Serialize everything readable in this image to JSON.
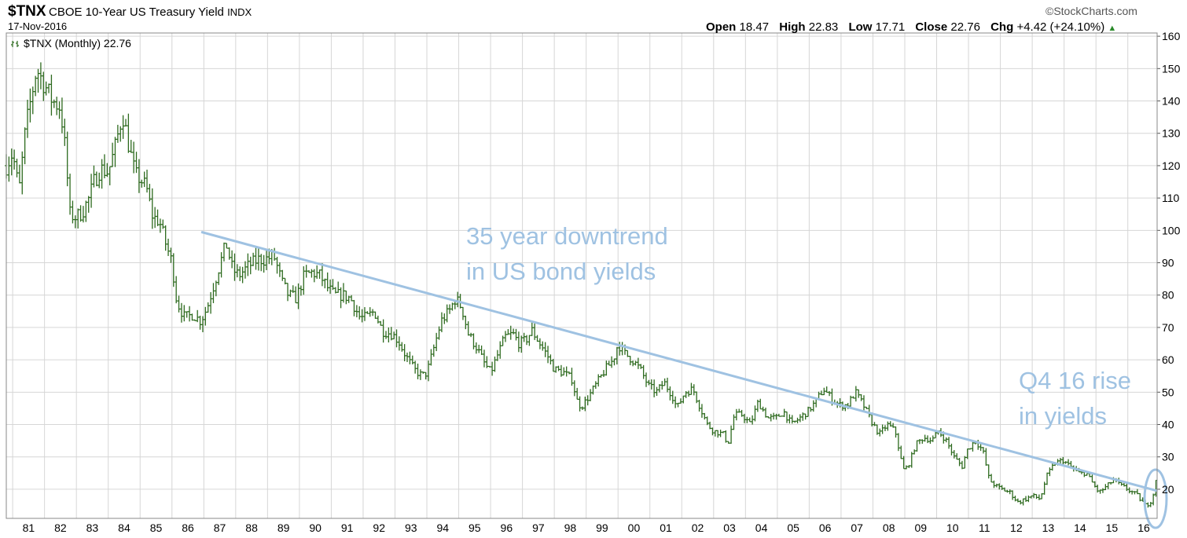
{
  "header": {
    "symbol": "$TNX",
    "title": "CBOE 10-Year US Treasury Yield",
    "kind": "INDX",
    "date": "17-Nov-2016",
    "brand": "©StockCharts.com",
    "ohlc": {
      "open_label": "Open",
      "open": "18.47",
      "high_label": "High",
      "high": "22.83",
      "low_label": "Low",
      "low": "17.71",
      "close_label": "Close",
      "close": "22.76",
      "chg_label": "Chg",
      "chg": "+4.42 (+24.10%)",
      "direction": "▲"
    },
    "legend": "$TNX (Monthly) 22.76"
  },
  "annotations": {
    "note1_line1": "35 year downtrend",
    "note1_line2": "in US bond yields",
    "note2_line1": "Q4 16 rise",
    "note2_line2": "in yields"
  },
  "colors": {
    "bars": "#2d6a1e",
    "annotation": "#9fc2e2",
    "grid": "#d6d6d6",
    "direction_up": "#2a8a2a"
  },
  "chart_data": {
    "type": "ohlc",
    "frequency": "monthly",
    "x_range": [
      1980.8,
      2016.92
    ],
    "ylim": [
      11,
      161
    ],
    "yticks": [
      20,
      30,
      40,
      50,
      60,
      70,
      80,
      90,
      100,
      110,
      120,
      130,
      140,
      150,
      160
    ],
    "xtick_labels": [
      "81",
      "82",
      "83",
      "84",
      "85",
      "86",
      "87",
      "88",
      "89",
      "90",
      "91",
      "92",
      "93",
      "94",
      "95",
      "96",
      "97",
      "98",
      "99",
      "00",
      "01",
      "02",
      "03",
      "04",
      "05",
      "06",
      "07",
      "08",
      "09",
      "10",
      "11",
      "12",
      "13",
      "14",
      "15",
      "16"
    ],
    "grid": true,
    "close_anchors": [
      [
        1980.8,
        120
      ],
      [
        1981.0,
        124
      ],
      [
        1981.2,
        112
      ],
      [
        1981.4,
        131
      ],
      [
        1981.6,
        142
      ],
      [
        1981.75,
        150
      ],
      [
        1982.0,
        145
      ],
      [
        1982.25,
        140
      ],
      [
        1982.5,
        138
      ],
      [
        1982.65,
        125
      ],
      [
        1982.8,
        105
      ],
      [
        1983.0,
        104
      ],
      [
        1983.2,
        106
      ],
      [
        1983.4,
        110
      ],
      [
        1983.55,
        115
      ],
      [
        1983.75,
        119
      ],
      [
        1984.0,
        118
      ],
      [
        1984.2,
        125
      ],
      [
        1984.45,
        136
      ],
      [
        1984.65,
        126
      ],
      [
        1984.85,
        117
      ],
      [
        1985.0,
        116
      ],
      [
        1985.2,
        113
      ],
      [
        1985.4,
        104
      ],
      [
        1985.6,
        103
      ],
      [
        1985.8,
        96
      ],
      [
        1986.0,
        90
      ],
      [
        1986.15,
        78
      ],
      [
        1986.4,
        73
      ],
      [
        1986.65,
        74
      ],
      [
        1986.9,
        72
      ],
      [
        1987.1,
        76
      ],
      [
        1987.4,
        86
      ],
      [
        1987.7,
        96
      ],
      [
        1987.9,
        88
      ],
      [
        1988.1,
        86
      ],
      [
        1988.4,
        89
      ],
      [
        1988.7,
        91
      ],
      [
        1988.9,
        91
      ],
      [
        1989.2,
        92
      ],
      [
        1989.45,
        84
      ],
      [
        1989.65,
        80
      ],
      [
        1989.9,
        79
      ],
      [
        1990.15,
        86
      ],
      [
        1990.4,
        87
      ],
      [
        1990.65,
        86
      ],
      [
        1990.9,
        82
      ],
      [
        1991.1,
        80
      ],
      [
        1991.35,
        80
      ],
      [
        1991.6,
        79
      ],
      [
        1991.9,
        73
      ],
      [
        1992.1,
        73
      ],
      [
        1992.35,
        75
      ],
      [
        1992.6,
        69
      ],
      [
        1992.9,
        68
      ],
      [
        1993.1,
        66
      ],
      [
        1993.35,
        61
      ],
      [
        1993.6,
        57
      ],
      [
        1993.85,
        55
      ],
      [
        1994.0,
        56
      ],
      [
        1994.2,
        63
      ],
      [
        1994.45,
        72
      ],
      [
        1994.7,
        75
      ],
      [
        1994.9,
        79
      ],
      [
        1995.1,
        76
      ],
      [
        1995.3,
        68
      ],
      [
        1995.55,
        64
      ],
      [
        1995.8,
        59
      ],
      [
        1996.0,
        56
      ],
      [
        1996.2,
        61
      ],
      [
        1996.45,
        67
      ],
      [
        1996.7,
        68
      ],
      [
        1996.9,
        65
      ],
      [
        1997.1,
        66
      ],
      [
        1997.3,
        69
      ],
      [
        1997.55,
        65
      ],
      [
        1997.8,
        61
      ],
      [
        1998.0,
        57
      ],
      [
        1998.3,
        56
      ],
      [
        1998.55,
        54
      ],
      [
        1998.75,
        46
      ],
      [
        1998.9,
        46
      ],
      [
        1999.1,
        49
      ],
      [
        1999.35,
        53
      ],
      [
        1999.6,
        57
      ],
      [
        1999.85,
        60
      ],
      [
        2000.0,
        65
      ],
      [
        2000.2,
        62
      ],
      [
        2000.45,
        60
      ],
      [
        2000.7,
        57
      ],
      [
        2000.95,
        52
      ],
      [
        2001.2,
        50
      ],
      [
        2001.45,
        53
      ],
      [
        2001.7,
        49
      ],
      [
        2001.85,
        45
      ],
      [
        2002.1,
        50
      ],
      [
        2002.35,
        51
      ],
      [
        2002.55,
        46
      ],
      [
        2002.8,
        40
      ],
      [
        2003.0,
        38
      ],
      [
        2003.3,
        37
      ],
      [
        2003.45,
        34
      ],
      [
        2003.65,
        43
      ],
      [
        2003.9,
        43
      ],
      [
        2004.15,
        40
      ],
      [
        2004.4,
        47
      ],
      [
        2004.7,
        42
      ],
      [
        2004.95,
        42
      ],
      [
        2005.2,
        44
      ],
      [
        2005.45,
        40
      ],
      [
        2005.7,
        42
      ],
      [
        2005.95,
        44
      ],
      [
        2006.2,
        47
      ],
      [
        2006.45,
        51
      ],
      [
        2006.7,
        48
      ],
      [
        2006.95,
        46
      ],
      [
        2007.2,
        46
      ],
      [
        2007.45,
        50
      ],
      [
        2007.7,
        46
      ],
      [
        2007.95,
        41
      ],
      [
        2008.2,
        37
      ],
      [
        2008.45,
        40
      ],
      [
        2008.7,
        38
      ],
      [
        2008.95,
        26
      ],
      [
        2009.1,
        27
      ],
      [
        2009.35,
        34
      ],
      [
        2009.6,
        36
      ],
      [
        2009.85,
        35
      ],
      [
        2010.05,
        38
      ],
      [
        2010.3,
        35
      ],
      [
        2010.55,
        30
      ],
      [
        2010.8,
        27
      ],
      [
        2010.95,
        32
      ],
      [
        2011.2,
        35
      ],
      [
        2011.45,
        32
      ],
      [
        2011.65,
        23
      ],
      [
        2011.85,
        21
      ],
      [
        2012.05,
        20
      ],
      [
        2012.3,
        19
      ],
      [
        2012.55,
        16
      ],
      [
        2012.8,
        17
      ],
      [
        2013.0,
        18
      ],
      [
        2013.25,
        17
      ],
      [
        2013.45,
        24
      ],
      [
        2013.7,
        28
      ],
      [
        2013.95,
        29
      ],
      [
        2014.2,
        27
      ],
      [
        2014.45,
        25
      ],
      [
        2014.7,
        25
      ],
      [
        2014.95,
        21
      ],
      [
        2015.1,
        19
      ],
      [
        2015.35,
        21
      ],
      [
        2015.55,
        23
      ],
      [
        2015.8,
        21
      ],
      [
        2016.0,
        20
      ],
      [
        2016.3,
        18
      ],
      [
        2016.55,
        15
      ],
      [
        2016.7,
        16
      ],
      [
        2016.8,
        18.5
      ],
      [
        2016.92,
        22.76
      ]
    ],
    "trend_line": {
      "from": [
        1986.92,
        99.5
      ],
      "to": [
        2016.92,
        19.5
      ]
    },
    "highlight_circle": {
      "center": [
        2016.92,
        19
      ],
      "label": "Q4 16 rise"
    }
  }
}
